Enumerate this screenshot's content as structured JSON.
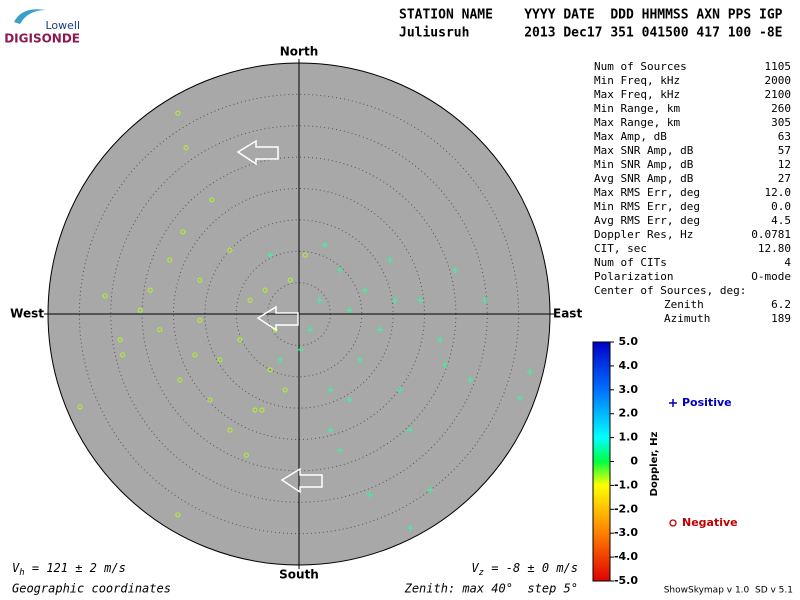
{
  "logo": {
    "top": "Lowell",
    "bottom": "DIGISONDE"
  },
  "header": {
    "labels": "STATION NAME    YYYY DATE  DDD HHMMSS AXN PPS IGP",
    "values": "Juliusruh       2013 Dec17 351 041500 417 100 -8E"
  },
  "info": [
    [
      "Num of Sources",
      "1105"
    ],
    [
      "Min Freq, kHz",
      "2000"
    ],
    [
      "Max Freq, kHz",
      "2100"
    ],
    [
      "Min Range, km",
      "260"
    ],
    [
      "Max Range, km",
      "305"
    ],
    [
      "Max Amp, dB",
      "63"
    ],
    [
      "Max SNR Amp, dB",
      "57"
    ],
    [
      "Min SNR Amp, dB",
      "12"
    ],
    [
      "Avg SNR Amp, dB",
      "27"
    ],
    [
      "Max RMS Err, deg",
      "12.0"
    ],
    [
      "Min RMS Err, deg",
      "0.0"
    ],
    [
      "Avg RMS Err, deg",
      "4.5"
    ],
    [
      "Doppler Res, Hz",
      "0.0781"
    ],
    [
      "CIT, sec",
      "12.80"
    ],
    [
      "Num of CITs",
      "4"
    ],
    [
      "Polarization",
      "O-mode"
    ],
    [
      "Center of Sources, deg:"
    ],
    [
      "Zenith",
      "6.2"
    ],
    [
      "Azimuth",
      "189"
    ]
  ],
  "footer": {
    "vh_symbol": "V",
    "vh_sub": "h",
    "vh_text": " = 121 ± 2 m/s",
    "vz_symbol": "V",
    "vz_sub": "z",
    "vz_text": " = -8 ± 0 m/s",
    "coords": "Geographic coordinates",
    "zenith": "Zenith: max 40°  step 5°",
    "version": "ShowSkymap v 1.0  SD v 5.1"
  },
  "chart_data": {
    "type": "skymap",
    "directions": {
      "north": "North",
      "south": "South",
      "east": "East",
      "west": "West"
    },
    "rlim": [
      0,
      40
    ],
    "rings": [
      5,
      10,
      15,
      20,
      25,
      30,
      35
    ],
    "series": [
      {
        "name": "Positive",
        "marker": "plus",
        "color": "#40f0a0",
        "legend_color": "#0000c0",
        "x": [
          24.9,
          29.6,
          36.8,
          35.2,
          17.7,
          20.9,
          11.3,
          6.5,
          5.0,
          8.1,
          16.1,
          12.9,
          8.1,
          3.3,
          1.8,
          19.3,
          22.5,
          14.5,
          6.5,
          0.2,
          -3.0,
          9.7,
          17.7,
          27.3,
          23.3,
          5.0,
          15.3,
          4.1,
          -4.6,
          10.5
        ],
        "y": [
          7.0,
          2.2,
          -9.2,
          -13.4,
          -34.1,
          -28.0,
          -28.8,
          -21.7,
          -18.5,
          -13.7,
          -12.1,
          -2.5,
          0.6,
          2.2,
          -2.5,
          2.2,
          -4.1,
          8.6,
          7.0,
          -5.7,
          -7.3,
          -7.3,
          -18.5,
          -10.5,
          -8.1,
          -12.1,
          2.2,
          11.0,
          9.4,
          3.8
        ]
      },
      {
        "name": "Negative",
        "marker": "circle",
        "color": "#b0e840",
        "legend_color": "#c00000",
        "x": [
          -19.3,
          -18.0,
          -13.9,
          -18.5,
          -23.7,
          -30.9,
          -34.9,
          -28.1,
          -22.2,
          -15.8,
          -11.0,
          -7.8,
          -9.4,
          -7.0,
          -11.0,
          -14.2,
          -19.0,
          -4.6,
          -2.2,
          -8.4,
          -19.3,
          -3.8,
          -15.8,
          -25.3,
          -12.6,
          -5.4,
          -1.4,
          -16.6,
          -5.9,
          1.0,
          -20.6,
          -28.5
        ],
        "y": [
          32.0,
          26.5,
          18.2,
          13.1,
          3.8,
          2.9,
          -14.8,
          -6.5,
          -2.5,
          5.4,
          10.2,
          2.2,
          -4.1,
          -15.3,
          -18.5,
          -13.7,
          -10.5,
          -8.9,
          -12.1,
          -22.5,
          -32.0,
          -2.5,
          -1.0,
          0.6,
          -7.3,
          3.8,
          5.4,
          -6.5,
          -15.3,
          9.4,
          8.6,
          -4.1
        ]
      }
    ],
    "colorbar": {
      "label": "Doppler, Hz",
      "clim": [
        -5,
        5
      ],
      "ticks": [
        {
          "value": 5,
          "label": "5.0"
        },
        {
          "value": 4,
          "label": "4.0"
        },
        {
          "value": 3,
          "label": "3.0"
        },
        {
          "value": 2,
          "label": "2.0"
        },
        {
          "value": 1,
          "label": "1.0"
        },
        0,
        {
          "value": -1,
          "label": "-1.0"
        },
        {
          "value": -2,
          "label": "-2.0"
        },
        {
          "value": -3,
          "label": "-3.0"
        },
        {
          "value": -4,
          "label": "-4.0"
        },
        {
          "value": -5,
          "label": "-5.0"
        }
      ]
    }
  }
}
